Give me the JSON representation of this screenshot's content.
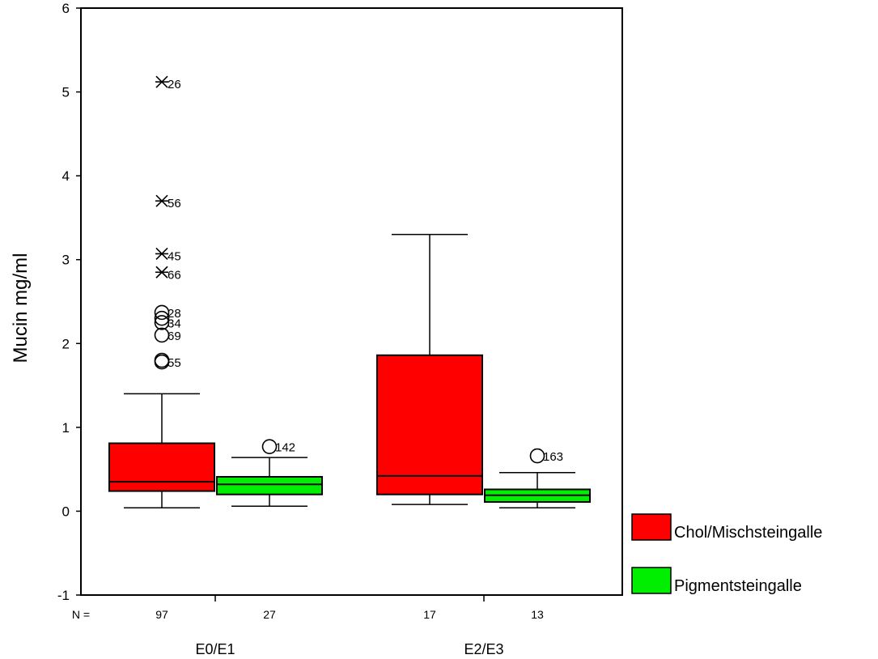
{
  "chart_data": {
    "type": "boxplot",
    "ylabel": "Mucin mg/ml",
    "ylim": [
      -1,
      6
    ],
    "yticks": [
      "-1",
      "0",
      "1",
      "2",
      "3",
      "4",
      "5",
      "6"
    ],
    "n_label": "N =",
    "groups": [
      "E0/E1",
      "E2/E3"
    ],
    "legend": [
      {
        "name": "Chol/Mischsteingalle",
        "color": "#ff0000"
      },
      {
        "name": "Pigmentsteingalle",
        "color": "#00ee00"
      }
    ],
    "legend_position": "bottom-right",
    "boxes": [
      {
        "group": "E0/E1",
        "series": "Chol/Mischsteingalle",
        "n": "97",
        "min": 0.04,
        "q1": 0.24,
        "median": 0.35,
        "q3": 0.81,
        "max": 1.4,
        "outliers": [
          {
            "value": 2.37,
            "label": "28",
            "marker": "circle"
          },
          {
            "value": 2.3,
            "label": "",
            "marker": "circle"
          },
          {
            "value": 2.25,
            "label": "34",
            "marker": "circle"
          },
          {
            "value": 2.1,
            "label": "69",
            "marker": "circle"
          },
          {
            "value": 1.8,
            "label": "",
            "marker": "circle"
          },
          {
            "value": 1.78,
            "label": "55",
            "marker": "circle"
          }
        ],
        "extremes": [
          {
            "value": 5.12,
            "label": "26"
          },
          {
            "value": 3.7,
            "label": "56"
          },
          {
            "value": 3.07,
            "label": "45"
          },
          {
            "value": 2.85,
            "label": "66"
          }
        ]
      },
      {
        "group": "E0/E1",
        "series": "Pigmentsteingalle",
        "n": "27",
        "min": 0.06,
        "q1": 0.2,
        "median": 0.32,
        "q3": 0.41,
        "max": 0.64,
        "outliers": [
          {
            "value": 0.77,
            "label": "142",
            "marker": "circle"
          }
        ],
        "extremes": []
      },
      {
        "group": "E2/E3",
        "series": "Chol/Mischsteingalle",
        "n": "17",
        "min": 0.08,
        "q1": 0.2,
        "median": 0.42,
        "q3": 1.86,
        "max": 3.3,
        "outliers": [],
        "extremes": []
      },
      {
        "group": "E2/E3",
        "series": "Pigmentsteingalle",
        "n": "13",
        "min": 0.04,
        "q1": 0.11,
        "median": 0.19,
        "q3": 0.26,
        "max": 0.46,
        "outliers": [
          {
            "value": 0.66,
            "label": "163",
            "marker": "circle"
          }
        ],
        "extremes": []
      }
    ]
  }
}
